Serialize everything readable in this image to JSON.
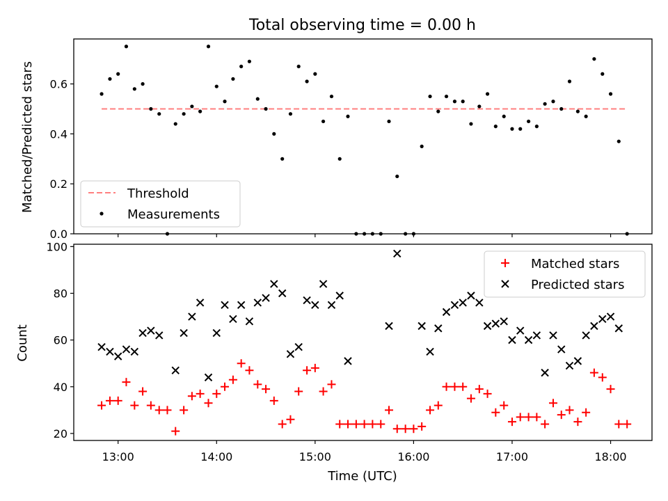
{
  "figure_title": "Total observing time = 0.00 h",
  "chart_data": [
    {
      "type": "scatter",
      "title": "Total observing time = 0.00 h",
      "xlabel": "",
      "ylabel": "Matched/Predicted stars",
      "ylim": [
        0,
        0.78
      ],
      "yticks": [
        0.0,
        0.2,
        0.4,
        0.6
      ],
      "ytick_labels": [
        "0.0",
        "0.2",
        "0.4",
        "0.6"
      ],
      "grid": false,
      "legend_position": "lower-left",
      "threshold": {
        "name": "Threshold",
        "value": 0.5,
        "x_start": 12.833,
        "x_end": 18.167,
        "color": "#ff7f7f"
      },
      "series": [
        {
          "name": "Measurements",
          "color": "#000000",
          "x": [
            12.833,
            12.917,
            13.0,
            13.083,
            13.167,
            13.25,
            13.333,
            13.417,
            13.5,
            13.583,
            13.667,
            13.75,
            13.833,
            13.917,
            14.0,
            14.083,
            14.167,
            14.25,
            14.333,
            14.417,
            14.5,
            14.583,
            14.667,
            14.75,
            14.833,
            14.917,
            15.0,
            15.083,
            15.167,
            15.25,
            15.333,
            15.417,
            15.5,
            15.583,
            15.667,
            15.75,
            15.833,
            15.917,
            16.0,
            16.083,
            16.167,
            16.25,
            16.333,
            16.417,
            16.5,
            16.583,
            16.667,
            16.75,
            16.833,
            16.917,
            17.0,
            17.083,
            17.167,
            17.25,
            17.333,
            17.417,
            17.5,
            17.583,
            17.667,
            17.75,
            17.833,
            17.917,
            18.0,
            18.083,
            18.167
          ],
          "y": [
            0.56,
            0.62,
            0.64,
            0.75,
            0.58,
            0.6,
            0.5,
            0.48,
            0.0,
            0.44,
            0.48,
            0.51,
            0.49,
            0.75,
            0.59,
            0.53,
            0.62,
            0.67,
            0.69,
            0.54,
            0.5,
            0.4,
            0.3,
            0.48,
            0.67,
            0.61,
            0.64,
            0.45,
            0.55,
            0.3,
            0.47,
            0.0,
            0.0,
            0.0,
            0.0,
            0.45,
            0.23,
            0.0,
            0.0,
            0.35,
            0.55,
            0.49,
            0.55,
            0.53,
            0.53,
            0.44,
            0.51,
            0.56,
            0.43,
            0.47,
            0.42,
            0.42,
            0.45,
            0.43,
            0.52,
            0.53,
            0.5,
            0.61,
            0.49,
            0.47,
            0.7,
            0.64,
            0.56,
            0.37,
            0.0
          ]
        }
      ]
    },
    {
      "type": "scatter",
      "title": "",
      "xlabel": "Time (UTC)",
      "ylabel": "Count",
      "ylim": [
        17,
        101
      ],
      "yticks": [
        20,
        40,
        60,
        80,
        100
      ],
      "ytick_labels": [
        "20",
        "40",
        "60",
        "80",
        "100"
      ],
      "xlim": [
        12.55,
        18.42
      ],
      "xticks": [
        13,
        14,
        15,
        16,
        17,
        18
      ],
      "xtick_labels": [
        "13:00",
        "14:00",
        "15:00",
        "16:00",
        "17:00",
        "18:00"
      ],
      "grid": false,
      "legend_position": "upper-right",
      "series": [
        {
          "name": "Matched stars",
          "marker": "plus",
          "color": "#ff0000",
          "x": [
            12.833,
            12.917,
            13.0,
            13.083,
            13.167,
            13.25,
            13.333,
            13.417,
            13.5,
            13.583,
            13.667,
            13.75,
            13.833,
            13.917,
            14.0,
            14.083,
            14.167,
            14.25,
            14.333,
            14.417,
            14.5,
            14.583,
            14.667,
            14.75,
            14.833,
            14.917,
            15.0,
            15.083,
            15.167,
            15.25,
            15.333,
            15.417,
            15.5,
            15.583,
            15.667,
            15.75,
            15.833,
            15.917,
            16.0,
            16.083,
            16.167,
            16.25,
            16.333,
            16.417,
            16.5,
            16.583,
            16.667,
            16.75,
            16.833,
            16.917,
            17.0,
            17.083,
            17.167,
            17.25,
            17.333,
            17.417,
            17.5,
            17.583,
            17.667,
            17.75,
            17.833,
            17.917,
            18.0,
            18.083,
            18.167
          ],
          "y": [
            32,
            34,
            34,
            42,
            32,
            38,
            32,
            30,
            30,
            21,
            30,
            36,
            37,
            33,
            37,
            40,
            43,
            50,
            47,
            41,
            39,
            34,
            24,
            26,
            38,
            47,
            48,
            38,
            41,
            24,
            24,
            24,
            24,
            24,
            24,
            30,
            22,
            22,
            22,
            23,
            30,
            32,
            40,
            40,
            40,
            35,
            39,
            37,
            29,
            32,
            25,
            27,
            27,
            27,
            24,
            33,
            28,
            30,
            25,
            29,
            46,
            44,
            39,
            24,
            24
          ]
        },
        {
          "name": "Predicted stars",
          "marker": "x",
          "color": "#000000",
          "x": [
            12.833,
            12.917,
            13.0,
            13.083,
            13.167,
            13.25,
            13.333,
            13.417,
            13.583,
            13.667,
            13.75,
            13.833,
            13.917,
            14.0,
            14.083,
            14.167,
            14.25,
            14.333,
            14.417,
            14.5,
            14.583,
            14.667,
            14.75,
            14.833,
            14.917,
            15.0,
            15.083,
            15.167,
            15.25,
            15.333,
            15.75,
            15.833,
            16.083,
            16.167,
            16.25,
            16.333,
            16.417,
            16.5,
            16.583,
            16.667,
            16.75,
            16.833,
            16.917,
            17.0,
            17.083,
            17.167,
            17.25,
            17.333,
            17.417,
            17.5,
            17.583,
            17.667,
            17.75,
            17.833,
            17.917,
            18.0,
            18.083
          ],
          "y": [
            57,
            55,
            53,
            56,
            55,
            63,
            64,
            62,
            47,
            63,
            70,
            76,
            44,
            63,
            75,
            69,
            75,
            68,
            76,
            78,
            84,
            80,
            54,
            57,
            77,
            75,
            84,
            75,
            79,
            51,
            66,
            97,
            66,
            55,
            65,
            72,
            75,
            76,
            79,
            76,
            66,
            67,
            68,
            60,
            64,
            60,
            62,
            46,
            62,
            56,
            49,
            51,
            62,
            66,
            69,
            70,
            65
          ]
        }
      ]
    }
  ]
}
